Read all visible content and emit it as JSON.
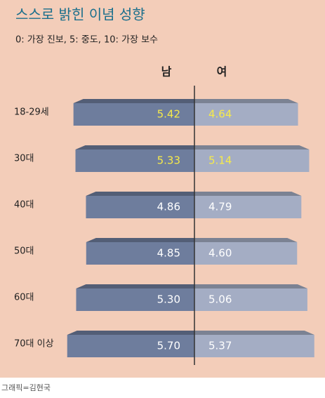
{
  "chart_data": {
    "type": "butterfly_bar",
    "title": "스스로 밝힌 이념 성향",
    "subtitle": "0: 가장 진보, 5: 중도, 10: 가장 보수",
    "categories": [
      "18-29세",
      "30대",
      "40대",
      "50대",
      "60대",
      "70대 이상"
    ],
    "series": [
      {
        "name": "남",
        "color": "#6e7d9d",
        "values": [
          5.42,
          5.33,
          4.86,
          4.85,
          5.3,
          5.7
        ],
        "value_labels": [
          "5.42",
          "5.33",
          "4.86",
          "4.85",
          "5.30",
          "5.70"
        ],
        "label_colors": [
          "#f6ea4a",
          "#f6ea4a",
          "#ffffff",
          "#ffffff",
          "#ffffff",
          "#ffffff"
        ]
      },
      {
        "name": "여",
        "color": "#a4adc4",
        "values": [
          4.64,
          5.14,
          4.79,
          4.6,
          5.06,
          5.37
        ],
        "value_labels": [
          "4.64",
          "5.14",
          "4.79",
          "4.60",
          "5.06",
          "5.37"
        ],
        "label_colors": [
          "#f6ea4a",
          "#f6ea4a",
          "#ffffff",
          "#ffffff",
          "#ffffff",
          "#ffffff"
        ]
      }
    ],
    "source": "그래픽=김현국"
  }
}
